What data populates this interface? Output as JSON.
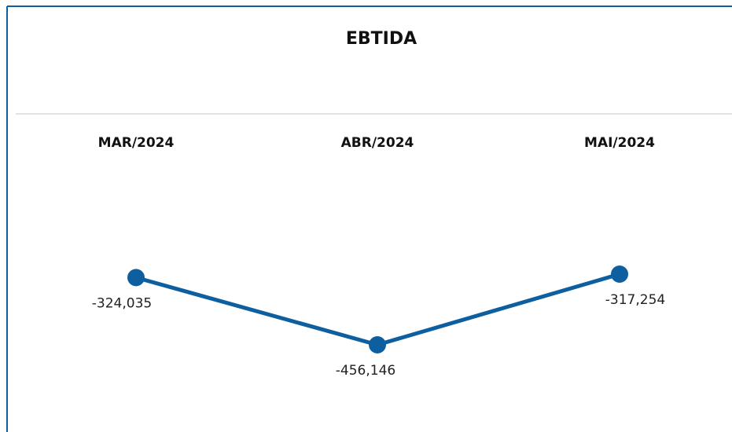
{
  "chart_data": {
    "type": "line",
    "title": "EBTIDA",
    "categories": [
      "MAR/2024",
      "ABR/2024",
      "MAI/2024"
    ],
    "values": [
      -324035,
      -456146,
      -317254
    ],
    "value_labels": [
      "-324,035",
      "-456,146",
      "-317,254"
    ],
    "color": "#0d5fa0"
  }
}
